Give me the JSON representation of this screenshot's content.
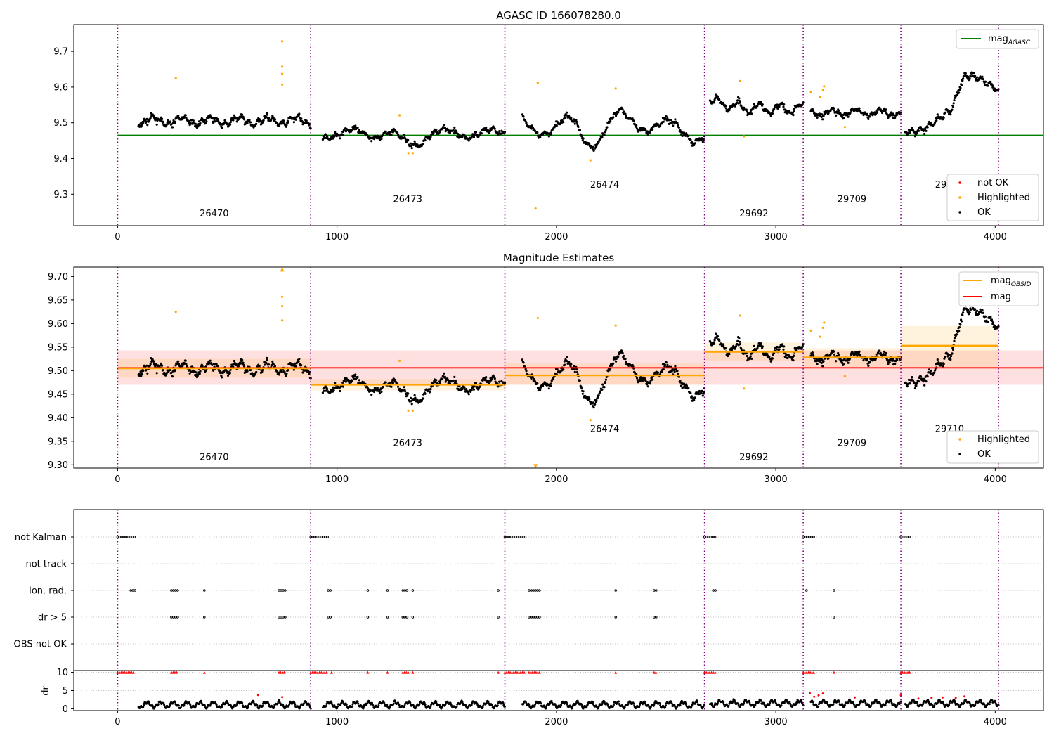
{
  "chart_data": [
    {
      "type": "scatter",
      "title": "AGASC ID 166078280.0",
      "xlim": [
        -200,
        4220
      ],
      "ylim": [
        9.212,
        9.775
      ],
      "xticks": [
        0,
        1000,
        2000,
        3000,
        4000
      ],
      "yticks": [
        9.3,
        9.4,
        9.5,
        9.6,
        9.7
      ],
      "obsid_boundaries": [
        0,
        880,
        1765,
        2675,
        3125,
        3570,
        4015
      ],
      "obsids": [
        {
          "label": "26470",
          "x": 440,
          "y": 9.238
        },
        {
          "label": "26473",
          "x": 1322,
          "y": 9.278
        },
        {
          "label": "26474",
          "x": 2220,
          "y": 9.318
        },
        {
          "label": "29692",
          "x": 2900,
          "y": 9.238
        },
        {
          "label": "29709",
          "x": 3347,
          "y": 9.278
        },
        {
          "label": "29710",
          "x": 3792,
          "y": 9.318
        }
      ],
      "reference_line": {
        "name": "mag_AGASC",
        "y": 9.465,
        "x": [
          0,
          4220
        ],
        "color": "#008000"
      },
      "segment_levels": [
        9.505,
        9.47,
        9.49,
        9.54,
        9.528,
        9.553
      ],
      "highlighted_points": [
        [
          265,
          9.625
        ],
        [
          750,
          9.728
        ],
        [
          750,
          9.657
        ],
        [
          750,
          9.637
        ],
        [
          750,
          9.607
        ],
        [
          1285,
          9.521
        ],
        [
          1325,
          9.415
        ],
        [
          1345,
          9.415
        ],
        [
          1905,
          9.26
        ],
        [
          1915,
          9.612
        ],
        [
          2155,
          9.395
        ],
        [
          2270,
          9.596
        ],
        [
          2835,
          9.617
        ],
        [
          2855,
          9.462
        ],
        [
          3160,
          9.585
        ],
        [
          3215,
          9.591
        ],
        [
          3220,
          9.602
        ],
        [
          3200,
          9.572
        ],
        [
          3315,
          9.488
        ]
      ],
      "legend": [
        {
          "label": "mag_AGASC",
          "kind": "line",
          "color": "#008000",
          "placement": "upper right"
        },
        {
          "label": "not OK",
          "kind": "point",
          "color": "#ff0000",
          "placement": "lower right"
        },
        {
          "label": "Highlighted",
          "kind": "point",
          "color": "#ffa500",
          "placement": "lower right"
        },
        {
          "label": "OK",
          "kind": "point",
          "color": "#000000",
          "placement": "lower right"
        }
      ]
    },
    {
      "type": "scatter",
      "title": "Magnitude Estimates",
      "xlim": [
        -200,
        4220
      ],
      "ylim": [
        9.293,
        9.72
      ],
      "xticks": [
        0,
        1000,
        2000,
        3000,
        4000
      ],
      "yticks": [
        9.3,
        9.35,
        9.4,
        9.45,
        9.5,
        9.55,
        9.6,
        9.65,
        9.7
      ],
      "obsids": [
        {
          "label": "26470",
          "x": 440,
          "y": 9.31
        },
        {
          "label": "26473",
          "x": 1322,
          "y": 9.34
        },
        {
          "label": "26474",
          "x": 2220,
          "y": 9.37
        },
        {
          "label": "29692",
          "x": 2900,
          "y": 9.31
        },
        {
          "label": "29709",
          "x": 3347,
          "y": 9.34
        },
        {
          "label": "29710",
          "x": 3792,
          "y": 9.37
        }
      ],
      "mag": {
        "name": "mag",
        "y": 9.506,
        "band": [
          9.47,
          9.543
        ],
        "x": [
          0,
          4220
        ],
        "color": "#ff0000"
      },
      "mag_obsid": [
        {
          "x": [
            0,
            880
          ],
          "y": 9.505,
          "band": [
            9.485,
            9.525
          ]
        },
        {
          "x": [
            880,
            1765
          ],
          "y": 9.47,
          "band": [
            9.458,
            9.482
          ]
        },
        {
          "x": [
            1765,
            2675
          ],
          "y": 9.49,
          "band": [
            9.47,
            9.515
          ]
        },
        {
          "x": [
            2675,
            3125
          ],
          "y": 9.54,
          "band": [
            9.52,
            9.56
          ]
        },
        {
          "x": [
            3125,
            3570
          ],
          "y": 9.528,
          "band": [
            9.508,
            9.548
          ]
        },
        {
          "x": [
            3570,
            4015
          ],
          "y": 9.553,
          "band": [
            9.505,
            9.595
          ]
        }
      ],
      "highlighted_points": [
        [
          265,
          9.625
        ],
        [
          750,
          9.657
        ],
        [
          750,
          9.637
        ],
        [
          750,
          9.607
        ],
        [
          1285,
          9.521
        ],
        [
          1325,
          9.415
        ],
        [
          1345,
          9.415
        ],
        [
          1915,
          9.612
        ],
        [
          2155,
          9.395
        ],
        [
          2270,
          9.596
        ],
        [
          2835,
          9.617
        ],
        [
          2855,
          9.462
        ],
        [
          3160,
          9.585
        ],
        [
          3215,
          9.591
        ],
        [
          3220,
          9.602
        ],
        [
          3200,
          9.572
        ],
        [
          3315,
          9.488
        ]
      ],
      "clipped_markers": [
        {
          "x": 750,
          "y": 9.715,
          "dir": "up"
        },
        {
          "x": 1905,
          "y": 9.297,
          "dir": "down"
        }
      ],
      "legend": [
        {
          "label": "mag_OBSID",
          "kind": "line",
          "color": "#ffa500",
          "placement": "upper right"
        },
        {
          "label": "mag",
          "kind": "line",
          "color": "#ff0000",
          "placement": "upper right"
        },
        {
          "label": "Highlighted",
          "kind": "point",
          "color": "#ffa500",
          "placement": "lower right"
        },
        {
          "label": "OK",
          "kind": "point",
          "color": "#000000",
          "placement": "lower right"
        }
      ]
    },
    {
      "type": "scatter",
      "title": "",
      "xlim": [
        -200,
        4220
      ],
      "categories": [
        "not Kalman",
        "not track",
        "Ion. rad.",
        "dr > 5",
        "OBS not OK"
      ],
      "flag_runs": {
        "not Kalman": [
          [
            0,
            80
          ],
          [
            880,
            960
          ],
          [
            1765,
            1860
          ],
          [
            2675,
            2725
          ],
          [
            3125,
            3175
          ],
          [
            3570,
            3615
          ]
        ],
        "not track": [],
        "Ion. rad.": [
          [
            60,
            80
          ],
          [
            245,
            275
          ],
          [
            395,
            400
          ],
          [
            735,
            765
          ],
          [
            960,
            975
          ],
          [
            1140,
            1145
          ],
          [
            1230,
            1235
          ],
          [
            1300,
            1325
          ],
          [
            1345,
            1350
          ],
          [
            1735,
            1740
          ],
          [
            1875,
            1925
          ],
          [
            2270,
            2275
          ],
          [
            2445,
            2460
          ],
          [
            2715,
            2725
          ],
          [
            3140,
            3145
          ],
          [
            3265,
            3270
          ]
        ],
        "dr > 5": [
          [
            245,
            275
          ],
          [
            395,
            400
          ],
          [
            735,
            765
          ],
          [
            960,
            975
          ],
          [
            1140,
            1145
          ],
          [
            1230,
            1235
          ],
          [
            1300,
            1325
          ],
          [
            1345,
            1350
          ],
          [
            1735,
            1740
          ],
          [
            1875,
            1925
          ],
          [
            2270,
            2275
          ],
          [
            2445,
            2460
          ],
          [
            3265,
            3270
          ]
        ],
        "OBS not OK": []
      },
      "dr": {
        "ylabel": "dr",
        "ylim": [
          -0.5,
          10.5
        ],
        "yticks": [
          0,
          5,
          10
        ],
        "clip_value": 10,
        "clipped_runs": [
          [
            0,
            80
          ],
          [
            245,
            275
          ],
          [
            395,
            400
          ],
          [
            735,
            765
          ],
          [
            880,
            960
          ],
          [
            975,
            975
          ],
          [
            1140,
            1145
          ],
          [
            1230,
            1235
          ],
          [
            1300,
            1325
          ],
          [
            1345,
            1350
          ],
          [
            1735,
            1740
          ],
          [
            1765,
            1860
          ],
          [
            1875,
            1925
          ],
          [
            2270,
            2275
          ],
          [
            2445,
            2460
          ],
          [
            2675,
            2725
          ],
          [
            3125,
            3175
          ],
          [
            3265,
            3270
          ],
          [
            3570,
            3615
          ]
        ],
        "red_points": [
          [
            640,
            3.8
          ],
          [
            750,
            3.2
          ],
          [
            3155,
            4.3
          ],
          [
            3175,
            3.3
          ],
          [
            3195,
            3.7
          ],
          [
            3215,
            4.2
          ],
          [
            3360,
            3.1
          ],
          [
            3570,
            3.7
          ],
          [
            3650,
            2.8
          ],
          [
            3710,
            3.0
          ],
          [
            3760,
            3.1
          ],
          [
            3820,
            3.0
          ],
          [
            3860,
            3.4
          ]
        ]
      }
    }
  ]
}
